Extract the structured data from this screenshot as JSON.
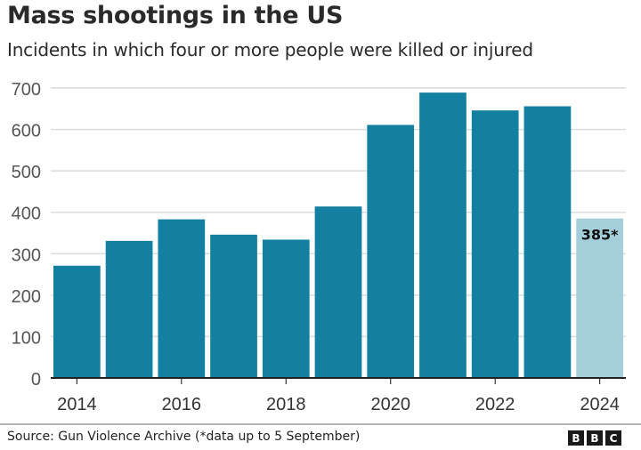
{
  "chart_data": {
    "type": "bar",
    "title": "Mass shootings in the US",
    "subtitle": "Incidents in which four or more people were killed or injured",
    "categories": [
      "2014",
      "2015",
      "2016",
      "2017",
      "2018",
      "2019",
      "2020",
      "2021",
      "2022",
      "2023",
      "2024"
    ],
    "values": [
      271,
      331,
      383,
      346,
      334,
      414,
      611,
      689,
      646,
      656,
      385
    ],
    "x_tick_labels": [
      "2014",
      "2016",
      "2018",
      "2020",
      "2022",
      "2024"
    ],
    "y_ticks": [
      0,
      100,
      200,
      300,
      400,
      500,
      600,
      700
    ],
    "ylim": [
      0,
      700
    ],
    "grid": true,
    "xlabel": "",
    "ylabel": "",
    "annotations": [
      {
        "category": "2024",
        "text": "385*"
      }
    ],
    "colors": {
      "bar": "#1380a1",
      "highlight": "#a5cedb",
      "grid": "#dcdcdc"
    }
  },
  "footer": {
    "source": "Source: Gun Violence Archive (*data up to 5 September)",
    "logo": [
      "B",
      "B",
      "C"
    ]
  }
}
